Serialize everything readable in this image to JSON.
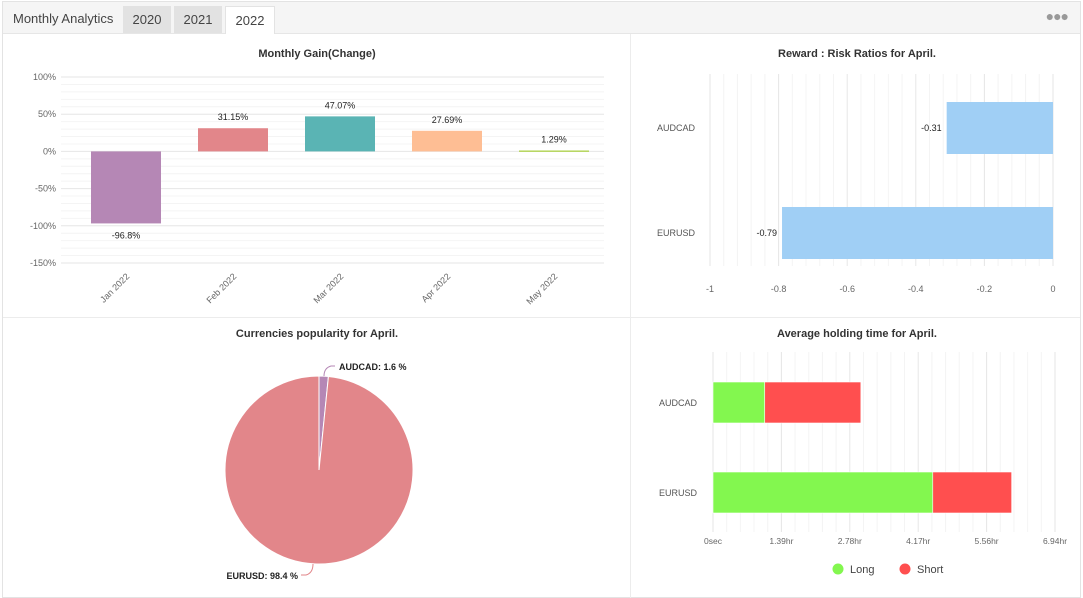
{
  "header": {
    "title": "Monthly Analytics",
    "tabs": [
      "2020",
      "2021",
      "2022"
    ],
    "active_tab": "2022",
    "more_icon": "ellipsis-icon"
  },
  "chart_data": [
    {
      "type": "bar",
      "title": "Monthly Gain(Change)",
      "categories": [
        "Jan 2022",
        "Feb 2022",
        "Mar 2022",
        "Apr 2022",
        "May 2022"
      ],
      "values": [
        -96.8,
        31.15,
        47.07,
        27.69,
        1.29
      ],
      "labels": [
        "-96.8%",
        "31.15%",
        "47.07%",
        "27.69%",
        "1.29%"
      ],
      "colors": [
        "#b587b5",
        "#e2868a",
        "#5ab4b4",
        "#febe94",
        "#b5d55c"
      ],
      "ylim": [
        -150,
        100
      ],
      "yticks": [
        "100%",
        "50%",
        "0%",
        "-50%",
        "-100%",
        "-150%"
      ],
      "grid": true
    },
    {
      "type": "bar",
      "orientation": "horizontal",
      "title": "Reward : Risk Ratios for April.",
      "categories": [
        "AUDCAD",
        "EURUSD"
      ],
      "values": [
        -0.31,
        -0.79
      ],
      "labels": [
        "-0.31",
        "-0.79"
      ],
      "color": "#a0cff5",
      "xlim": [
        -1,
        0
      ],
      "xticks": [
        "-1",
        "-0.8",
        "-0.6",
        "-0.4",
        "-0.2",
        "0"
      ],
      "grid": true
    },
    {
      "type": "pie",
      "title": "Currencies popularity for April.",
      "slices": [
        {
          "name": "AUDCAD",
          "value": 1.6,
          "label": "AUDCAD: 1.6 %",
          "color": "#b587b5"
        },
        {
          "name": "EURUSD",
          "value": 98.4,
          "label": "EURUSD: 98.4 %",
          "color": "#e2868a"
        }
      ]
    },
    {
      "type": "bar",
      "orientation": "horizontal",
      "stacked": true,
      "title": "Average holding time for April.",
      "categories": [
        "AUDCAD",
        "EURUSD"
      ],
      "series": [
        {
          "name": "Long",
          "values": [
            1.05,
            4.46
          ],
          "color": "#83f74f"
        },
        {
          "name": "Short",
          "values": [
            1.95,
            1.6
          ],
          "color": "#ff4f4f"
        }
      ],
      "unit": "hr",
      "xlim": [
        0,
        6.94
      ],
      "xticks": [
        "0sec",
        "1.39hr",
        "2.78hr",
        "4.17hr",
        "5.56hr",
        "6.94hr"
      ],
      "legend": "bottom",
      "grid": true
    }
  ]
}
